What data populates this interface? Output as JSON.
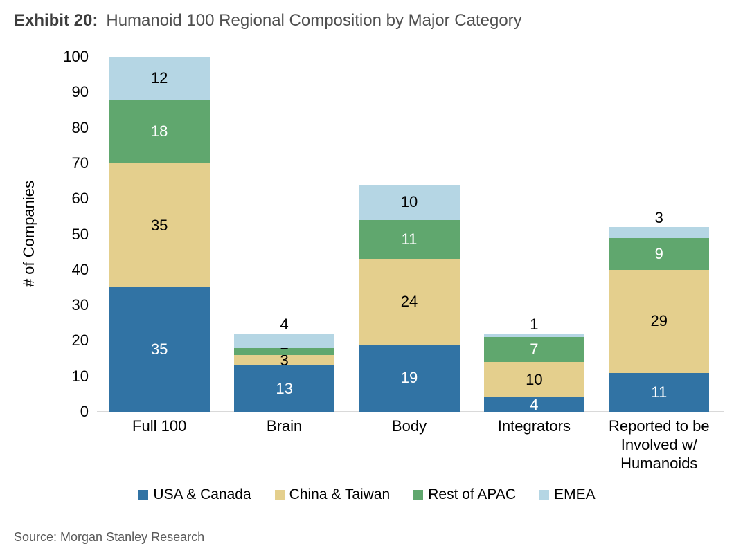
{
  "header": {
    "exhibit_label": "Exhibit 20:",
    "title": "Humanoid 100 Regional Composition by Major Category"
  },
  "source": "Source: Morgan Stanley Research",
  "chart_data": {
    "type": "bar",
    "stacked": true,
    "title": "Humanoid 100 Regional Composition by Major Category",
    "xlabel": "",
    "ylabel": "# of Companies",
    "ylim": [
      0,
      100
    ],
    "yticks": [
      0,
      10,
      20,
      30,
      40,
      50,
      60,
      70,
      80,
      90,
      100
    ],
    "grid": false,
    "legend_position": "bottom",
    "axis_line_color": "#d9d9d9",
    "categories": [
      "Full 100",
      "Brain",
      "Body",
      "Integrators",
      "Reported to be Involved w/ Humanoids"
    ],
    "category_display_lines": [
      [
        "Full 100"
      ],
      [
        "Brain"
      ],
      [
        "Body"
      ],
      [
        "Integrators"
      ],
      [
        "Reported to be",
        "Involved w/",
        "Humanoids"
      ]
    ],
    "category_totals": [
      100,
      22,
      64,
      22,
      52
    ],
    "series": [
      {
        "name": "USA & Canada",
        "color": "#3173A4",
        "label_color": "#ffffff",
        "values": [
          35,
          13,
          19,
          4,
          11
        ]
      },
      {
        "name": "China & Taiwan",
        "color": "#E4CF8D",
        "label_color": "#000000",
        "values": [
          35,
          3,
          24,
          10,
          29
        ]
      },
      {
        "name": "Rest of APAC",
        "color": "#60A76E",
        "label_color": "#ffffff",
        "values": [
          18,
          2,
          11,
          7,
          9
        ]
      },
      {
        "name": "EMEA",
        "color": "#B5D6E4",
        "label_color": "#000000",
        "values": [
          12,
          4,
          10,
          1,
          3
        ]
      }
    ]
  }
}
